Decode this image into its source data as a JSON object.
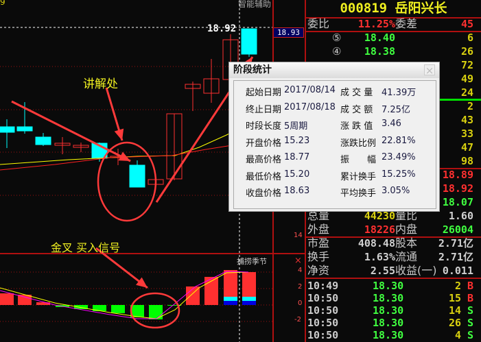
{
  "stock": {
    "code": "000819",
    "name": "岳阳兴长"
  },
  "chart": {
    "top_left_tick": "9",
    "assist_label": "智能辅助",
    "crosshair_price": "18.92",
    "axis_price_label": "18.93",
    "indicator_axis_top": "14",
    "indicator_name": "捕捞季节",
    "indicator_close": "×",
    "indicator_ticks": [
      "4",
      "2",
      "0",
      "-2"
    ],
    "colors": {
      "up": "#ff3030",
      "down": "#00ffff",
      "ma_yellow": "#ffff00",
      "ma_red": "#ff2020",
      "macd_green": "#00ff00",
      "macd_magenta": "#ff00ff"
    }
  },
  "annotations": {
    "explain": "讲解处",
    "golden_cross": "金叉 买入信号"
  },
  "quote": {
    "weibi_label": "委比",
    "weibi": "11.25%",
    "weicha_label": "委差",
    "weicha": "45",
    "asks": [
      {
        "marker": "⑤",
        "price": "18.40",
        "vol": "6"
      },
      {
        "marker": "④",
        "price": "18.38",
        "vol": "26"
      },
      {
        "vol": "72"
      },
      {
        "vol": "49"
      },
      {
        "vol": "24"
      }
    ],
    "bids": [
      {
        "vol": "2"
      },
      {
        "vol": "43"
      },
      {
        "vol": "33"
      },
      {
        "vol": "47"
      },
      {
        "vol": "98"
      }
    ],
    "prices": [
      "18.89",
      "18.92",
      "18.07"
    ],
    "zongliang_label": "总量",
    "zongliang": "44230",
    "liangbi_label": "量比",
    "liangbi": "1.60",
    "waipan_label": "外盘",
    "waipan": "18226",
    "neipan_label": "内盘",
    "neipan": "26004",
    "shiying_label": "市盈",
    "shiying": "408.48",
    "guben_label": "股本",
    "guben": "2.71亿",
    "huanshou_label": "换手",
    "huanshou": "1.63%",
    "liutong_label": "流通",
    "liutong": "2.71亿",
    "jingzi_label": "净资",
    "jingzi": "2.55",
    "shouyi_label": "收益(一)",
    "shouyi": "0.011",
    "ticks": [
      {
        "time": "10:49",
        "price": "18.30",
        "vol": "2",
        "side": "B"
      },
      {
        "time": "10:50",
        "price": "18.30",
        "vol": "15",
        "side": "B"
      },
      {
        "time": "10:50",
        "price": "18.30",
        "vol": "14",
        "side": "S"
      },
      {
        "time": "10:50",
        "price": "18.30",
        "vol": "26",
        "side": "S"
      },
      {
        "time": "10:50",
        "price": "18.30",
        "vol": "4",
        "side": "S"
      }
    ]
  },
  "dialog": {
    "title": "阶段统计",
    "close": "×",
    "left": [
      {
        "label": "起始日期",
        "value": "2017/08/14"
      },
      {
        "label": "终止日期",
        "value": "2017/08/18"
      },
      {
        "label": "时段长度",
        "value": "5周期"
      },
      {
        "label": "开盘价格",
        "value": "15.23"
      },
      {
        "label": "最高价格",
        "value": "18.77"
      },
      {
        "label": "最低价格",
        "value": "15.20"
      },
      {
        "label": "收盘价格",
        "value": "18.63"
      }
    ],
    "right": [
      {
        "label": "成 交 量",
        "value": "41.39万"
      },
      {
        "label": "成 交 额",
        "value": "7.25亿"
      },
      {
        "label": "涨 跌 值",
        "value": "3.46"
      },
      {
        "label": "涨跌比例",
        "value": "22.81%"
      },
      {
        "label": "振　　幅",
        "value": "23.49%"
      },
      {
        "label": "累计换手",
        "value": "15.25%"
      },
      {
        "label": "平均换手",
        "value": "3.05%"
      }
    ]
  }
}
